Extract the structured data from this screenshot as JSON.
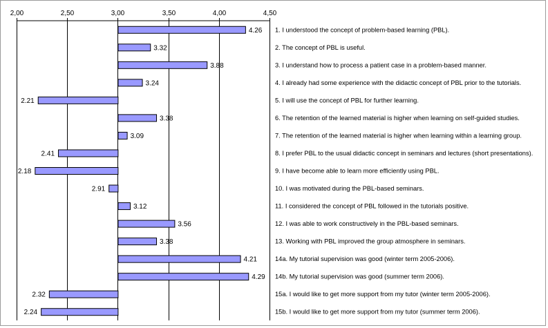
{
  "chart_data": {
    "type": "bar",
    "orientation": "horizontal",
    "xlim": [
      2.0,
      4.5
    ],
    "baseline": 3.0,
    "ticks": [
      "2,00",
      "2,50",
      "3,00",
      "3,50",
      "4,00",
      "4,50"
    ],
    "tick_values": [
      2.0,
      2.5,
      3.0,
      3.5,
      4.0,
      4.5
    ],
    "grid": true,
    "bar_color": "#9999ff",
    "bar_edge_color": "#000000",
    "categories": [
      "1. I understood the concept of problem-based learning (PBL).",
      "2. The concept of PBL is useful.",
      "3. I understand how to process a patient case in a problem-based manner.",
      "4. I already had some experience with the didactic concept of PBL prior to the tutorials.",
      "5. I will use the concept of PBL for further learning.",
      "6. The retention of the learned material is higher when learning on self-guided studies.",
      "7. The retention of the learned material is higher when learning within a learning group.",
      "8. I prefer PBL to the usual didactic concept in seminars and lectures (short presentations).",
      "9. I have become able to learn more efficiently using PBL.",
      "10. I was motivated during the PBL-based seminars.",
      "11. I considered the concept of PBL followed in the tutorials positive.",
      "12. I was able to work constructively in the PBL-based seminars.",
      "13. Working with PBL improved the group atmosphere in seminars.",
      "14a. My tutorial supervision was good (winter term 2005-2006).",
      "14b. My tutorial supervision was good (summer term 2006).",
      "15a. I would like to get more support from my tutor (winter term 2005-2006).",
      "15b. I would like to get more support from my tutor (summer term 2006)."
    ],
    "values": [
      4.26,
      3.32,
      3.88,
      3.24,
      2.21,
      3.38,
      3.09,
      2.41,
      2.18,
      2.91,
      3.12,
      3.56,
      3.38,
      4.21,
      4.29,
      2.32,
      2.24
    ],
    "value_labels": [
      "4.26",
      "3.32",
      "3.88",
      "3.24",
      "2.21",
      "3.38",
      "3.09",
      "2.41",
      "2.18",
      "2.91",
      "3.12",
      "3.56",
      "3.38",
      "4.21",
      "4.29",
      "2.32",
      "2.24"
    ]
  }
}
